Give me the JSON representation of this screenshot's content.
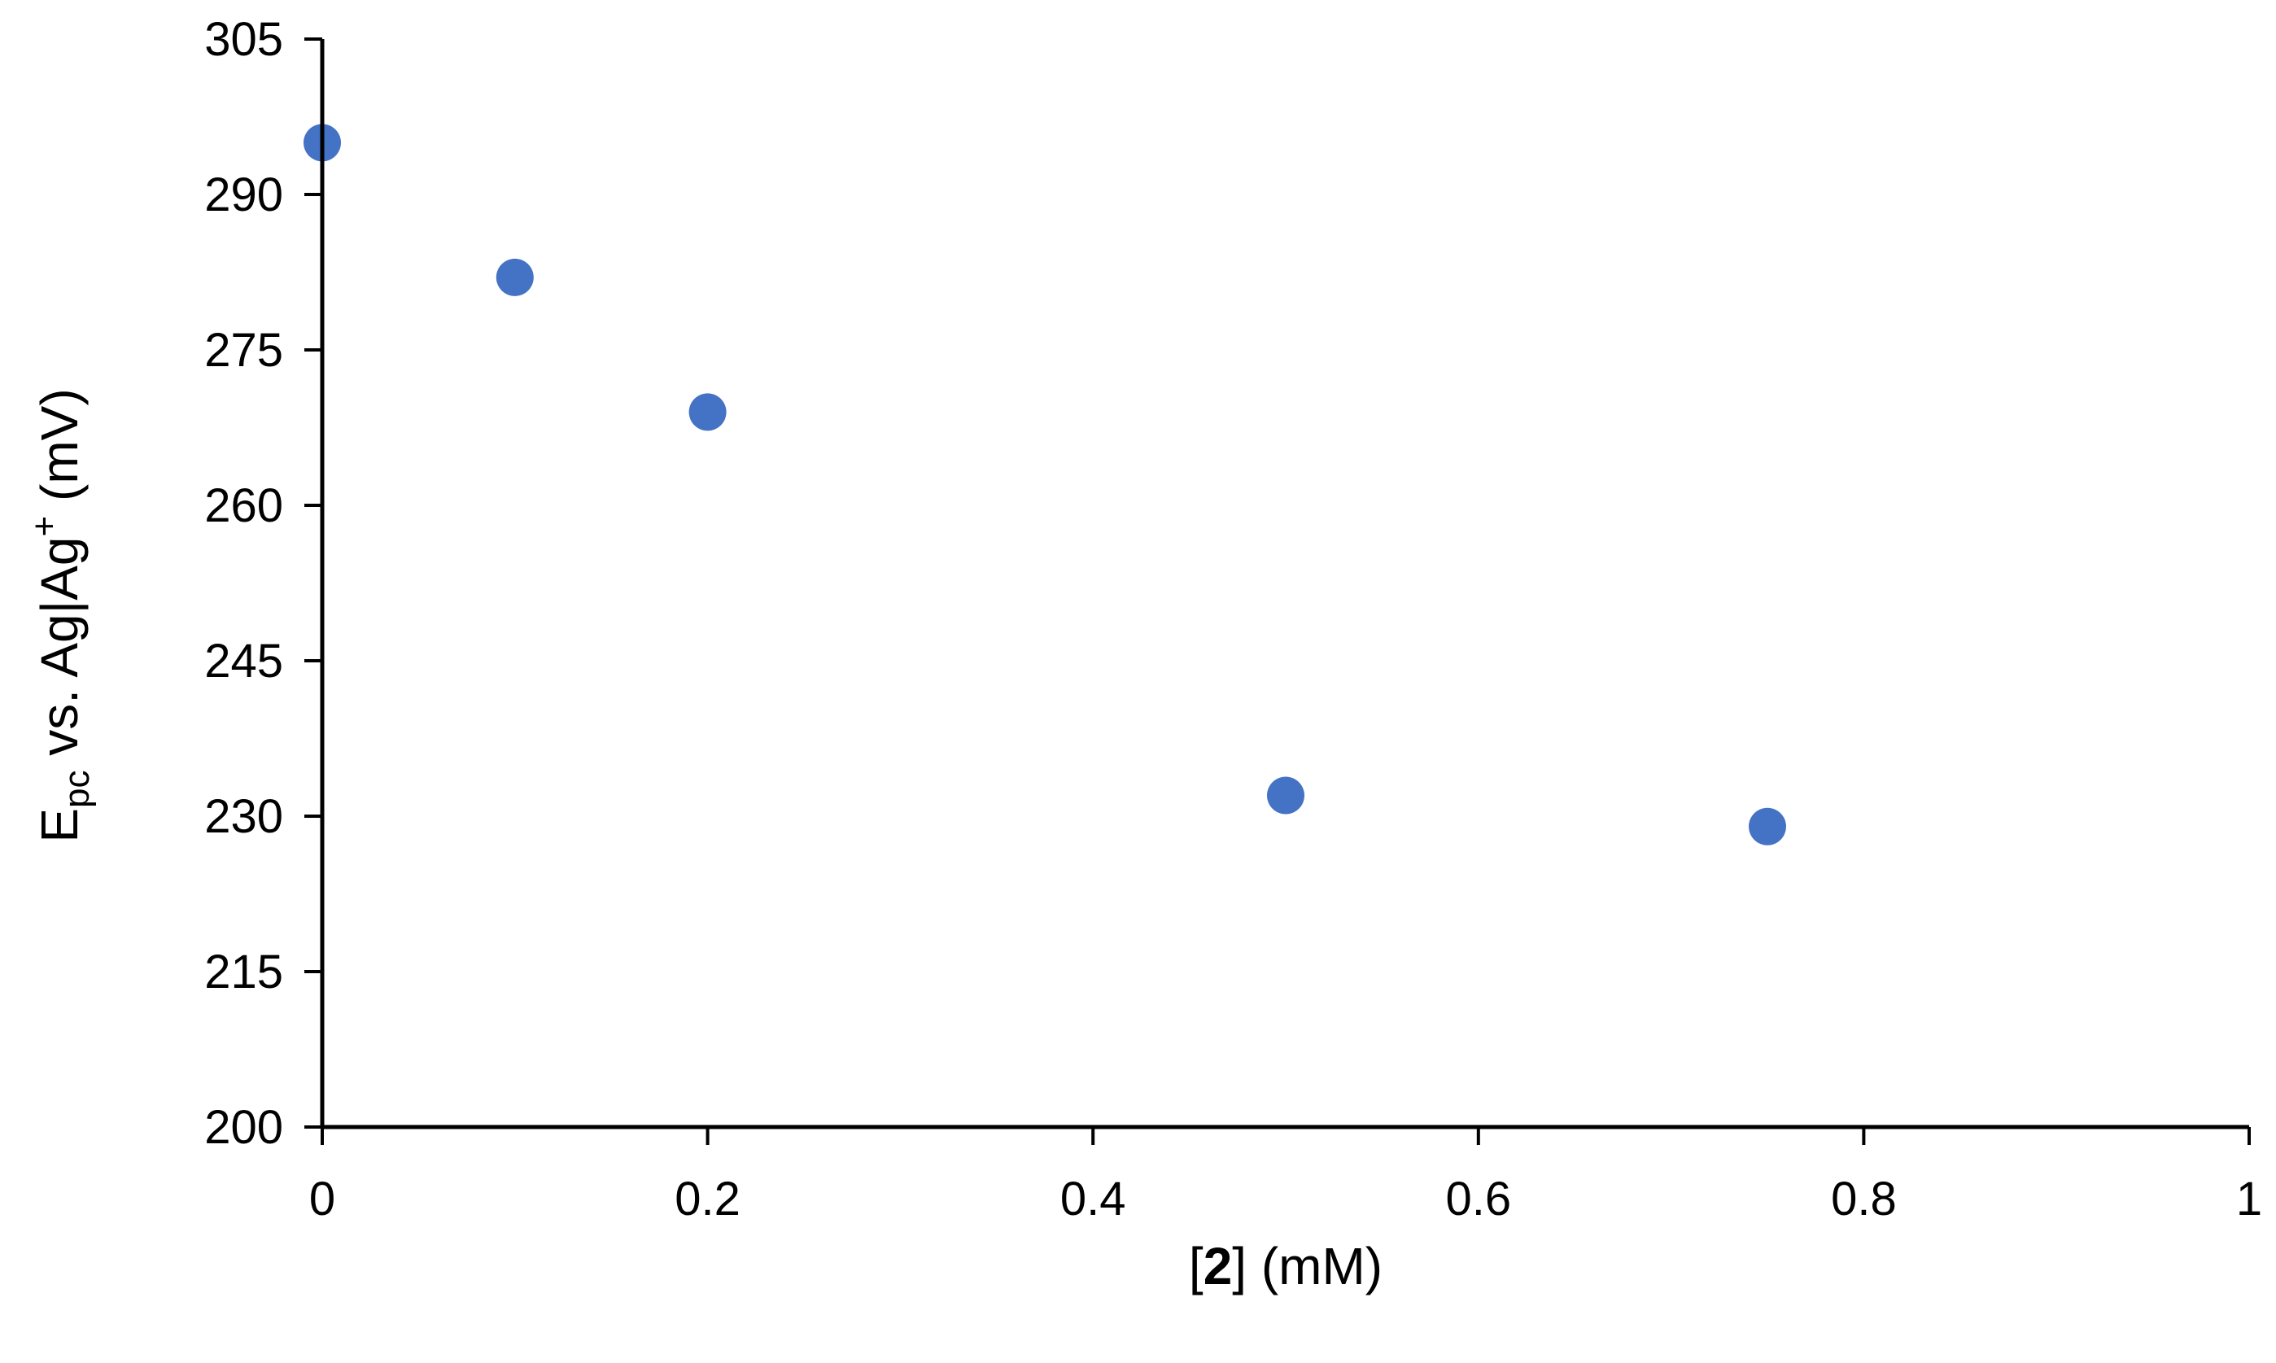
{
  "chart_data": {
    "type": "scatter",
    "title": "",
    "xlabel": {
      "prefix": "[",
      "bold": "2",
      "suffix": "] (mM)"
    },
    "ylabel": {
      "main": "E",
      "subscript": "pc",
      "middle": " vs. Ag|Ag",
      "superscript": "+",
      "suffix": " (mV)"
    },
    "xlim": [
      0,
      1
    ],
    "ylim": [
      200,
      305
    ],
    "x_ticks": [
      "0",
      "0.2",
      "0.4",
      "0.6",
      "0.8",
      "1"
    ],
    "y_ticks": [
      "200",
      "215",
      "230",
      "245",
      "260",
      "275",
      "290",
      "305"
    ],
    "grid": false,
    "legend": "none",
    "series": [
      {
        "color": "#4472C4",
        "points": [
          {
            "x": 0,
            "y": 295
          },
          {
            "x": 0.1,
            "y": 282
          },
          {
            "x": 0.2,
            "y": 269
          },
          {
            "x": 0.5,
            "y": 232
          },
          {
            "x": 0.75,
            "y": 229
          }
        ]
      }
    ]
  }
}
